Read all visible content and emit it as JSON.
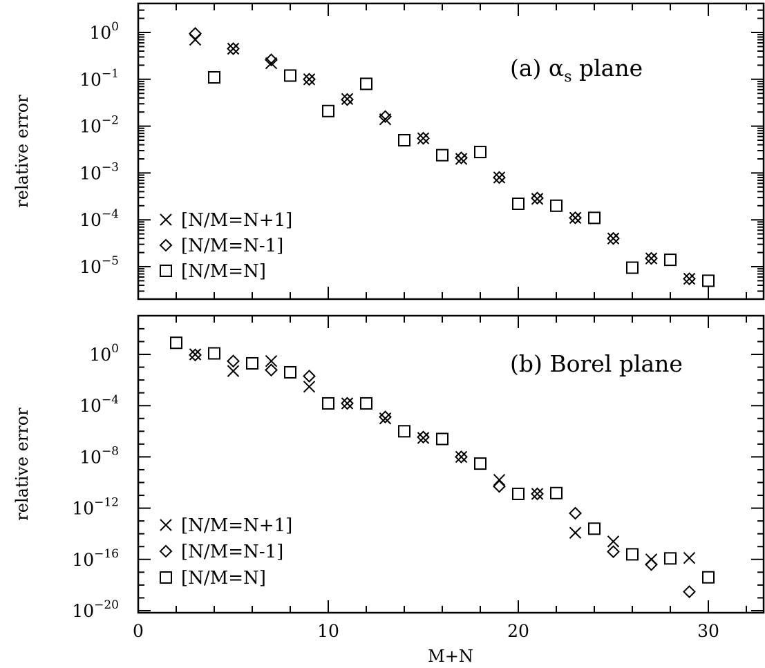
{
  "chart_data": [
    {
      "type": "scatter",
      "panel_label": "(a) α",
      "panel_label_sub": "s",
      "panel_label_suffix": " plane",
      "ylabel": "relative error",
      "yscale": "log",
      "ylim": [
        1e-06,
        4
      ],
      "y_ticks": [
        0,
        -1,
        -2,
        -3,
        -4,
        -5
      ],
      "xlim": [
        0,
        33
      ],
      "legend_position": "lower-left",
      "series": [
        {
          "name": "[N/M=N+1]",
          "marker": "cross",
          "x": [
            3,
            5,
            7,
            9,
            11,
            13,
            15,
            17,
            19,
            21,
            23,
            25,
            27,
            29
          ],
          "y": [
            0.7,
            0.45,
            0.22,
            0.1,
            0.038,
            0.014,
            0.0055,
            0.002,
            0.0008,
            0.00028,
            0.00011,
            4e-05,
            1.5e-05,
            5.5e-06
          ]
        },
        {
          "name": "[N/M=N-1]",
          "marker": "diamond",
          "x": [
            3,
            5,
            7,
            9,
            11,
            13,
            15,
            17,
            19,
            21,
            23,
            25,
            27,
            29
          ],
          "y": [
            0.95,
            0.45,
            0.26,
            0.1,
            0.037,
            0.016,
            0.0055,
            0.0021,
            0.0008,
            0.00029,
            0.00011,
            4e-05,
            1.5e-05,
            5.5e-06
          ]
        },
        {
          "name": "[N/M=N]",
          "marker": "square",
          "x": [
            4,
            8,
            10,
            12,
            14,
            16,
            18,
            20,
            22,
            24,
            26,
            28,
            30
          ],
          "y": [
            0.11,
            0.12,
            0.021,
            0.08,
            0.005,
            0.0024,
            0.0028,
            0.00022,
            0.0002,
            0.00011,
            9.5e-06,
            1.4e-05,
            5e-06
          ]
        }
      ]
    },
    {
      "type": "scatter",
      "panel_label": "(b) Borel plane",
      "ylabel": "relative error",
      "yscale": "log",
      "ylim": [
        1e-20,
        500
      ],
      "y_ticks": [
        0,
        -4,
        -8,
        -12,
        -16,
        -20
      ],
      "xlim": [
        0,
        33
      ],
      "xlabel": "M+N",
      "x_ticks": [
        0,
        10,
        20,
        30
      ],
      "legend_position": "lower-left",
      "series": [
        {
          "name": "[N/M=N+1]",
          "marker": "cross",
          "x": [
            3,
            5,
            7,
            9,
            11,
            13,
            15,
            17,
            19,
            21,
            23,
            25,
            27,
            29
          ],
          "y": [
            1.0,
            0.05,
            0.3,
            0.003,
            0.00015,
            1e-05,
            3e-07,
            1e-08,
            1.6e-10,
            1.3e-11,
            1.2e-14,
            2.5e-15,
            1e-16,
            1.3e-16
          ]
        },
        {
          "name": "[N/M=N-1]",
          "marker": "diamond",
          "x": [
            3,
            5,
            7,
            9,
            11,
            13,
            15,
            17,
            19,
            21,
            23,
            25,
            27,
            29
          ],
          "y": [
            0.9,
            0.3,
            0.06,
            0.02,
            0.00015,
            1.3e-05,
            3.5e-07,
            1e-08,
            5e-11,
            1.3e-11,
            4e-13,
            4e-16,
            4e-17,
            3e-19
          ]
        },
        {
          "name": "[N/M=N]",
          "marker": "square",
          "x": [
            2,
            4,
            6,
            8,
            10,
            12,
            14,
            16,
            18,
            20,
            22,
            24,
            26,
            28,
            30
          ],
          "y": [
            8,
            1.2,
            0.2,
            0.04,
            0.00015,
            0.00015,
            1e-06,
            2.5e-07,
            3e-09,
            1.3e-11,
            1.5e-11,
            2.5e-14,
            2.5e-16,
            1.2e-16,
            4e-18
          ]
        }
      ]
    }
  ]
}
